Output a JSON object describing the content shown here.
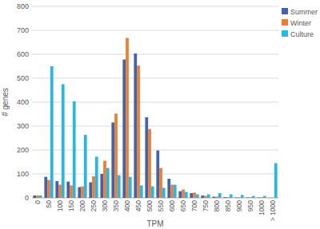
{
  "chart_data": {
    "type": "bar",
    "x_label": "TPM",
    "y_label": "# genes",
    "categories": [
      "0",
      "50",
      "100",
      "150",
      "200",
      "250",
      "300",
      "350",
      "400",
      "450",
      "500",
      "550",
      "600",
      "650",
      "700",
      "750",
      "800",
      "850",
      "900",
      "950",
      "1000",
      "> 1000"
    ],
    "series": [
      {
        "name": "Summer",
        "color": "#3f63ae",
        "values": [
          10,
          88,
          70,
          68,
          45,
          65,
          100,
          315,
          578,
          603,
          337,
          198,
          80,
          28,
          20,
          10,
          5,
          3,
          2,
          2,
          2,
          1
        ]
      },
      {
        "name": "Winter",
        "color": "#ed7d31",
        "values": [
          10,
          75,
          55,
          52,
          48,
          90,
          155,
          352,
          668,
          553,
          288,
          125,
          55,
          35,
          22,
          8,
          5,
          3,
          2,
          2,
          2,
          1
        ]
      },
      {
        "name": "Culture",
        "color": "#29b5e6",
        "values": [
          10,
          550,
          475,
          403,
          263,
          172,
          125,
          95,
          88,
          52,
          48,
          42,
          55,
          25,
          15,
          15,
          20,
          15,
          12,
          8,
          8,
          145
        ]
      }
    ],
    "ylim": [
      0,
      800
    ],
    "yticks": [
      0,
      100,
      200,
      300,
      400,
      500,
      600,
      700,
      800
    ],
    "grid": true,
    "legend": "right"
  }
}
